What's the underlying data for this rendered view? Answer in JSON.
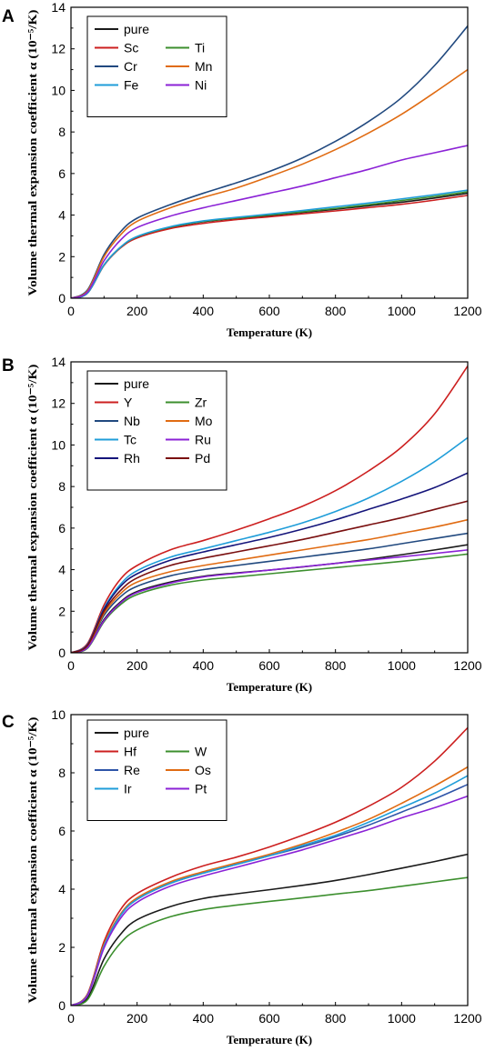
{
  "chart_data": [
    {
      "type": "line",
      "panel": "A",
      "xlabel": "Temperature (K)",
      "ylabel": "Volume thermal expansion coefficient α (10⁻⁵/K)",
      "xlim": [
        0,
        1200
      ],
      "ylim": [
        0,
        14
      ],
      "xticks": [
        0,
        200,
        400,
        600,
        800,
        1000,
        1200
      ],
      "yticks": [
        0,
        2,
        4,
        6,
        8,
        10,
        12,
        14
      ],
      "grid": false,
      "legend_position": "top-left",
      "x": [
        0,
        50,
        100,
        150,
        200,
        300,
        400,
        500,
        600,
        700,
        800,
        900,
        1000,
        1100,
        1200
      ],
      "series": [
        {
          "name": "pure",
          "color": "#1a1a1a",
          "values": [
            0,
            0.25,
            1.6,
            2.45,
            2.95,
            3.4,
            3.68,
            3.84,
            3.98,
            4.13,
            4.28,
            4.45,
            4.62,
            4.82,
            5.05
          ]
        },
        {
          "name": "Sc",
          "color": "#cc1f1f",
          "values": [
            0,
            0.25,
            1.58,
            2.42,
            2.9,
            3.35,
            3.6,
            3.78,
            3.92,
            4.06,
            4.2,
            4.36,
            4.52,
            4.72,
            4.95
          ]
        },
        {
          "name": "Ti",
          "color": "#3c8f2e",
          "values": [
            0,
            0.25,
            1.6,
            2.45,
            2.96,
            3.42,
            3.7,
            3.86,
            4.01,
            4.16,
            4.32,
            4.5,
            4.7,
            4.9,
            5.12
          ]
        },
        {
          "name": "Cr",
          "color": "#21497f",
          "values": [
            0,
            0.4,
            2.1,
            3.2,
            3.85,
            4.5,
            5.05,
            5.55,
            6.1,
            6.75,
            7.55,
            8.5,
            9.65,
            11.2,
            13.1
          ]
        },
        {
          "name": "Mn",
          "color": "#e06b12",
          "values": [
            0,
            0.35,
            2.0,
            3.05,
            3.7,
            4.35,
            4.85,
            5.3,
            5.85,
            6.45,
            7.15,
            7.95,
            8.85,
            9.9,
            11.0
          ]
        },
        {
          "name": "Fe",
          "color": "#1f9dd9",
          "values": [
            0,
            0.25,
            1.6,
            2.46,
            2.97,
            3.44,
            3.72,
            3.89,
            4.05,
            4.22,
            4.4,
            4.58,
            4.78,
            4.98,
            5.2
          ]
        },
        {
          "name": "Ni",
          "color": "#8b22d6",
          "values": [
            0,
            0.3,
            1.8,
            2.8,
            3.4,
            3.95,
            4.35,
            4.7,
            5.05,
            5.4,
            5.8,
            6.2,
            6.65,
            7.0,
            7.35
          ]
        }
      ]
    },
    {
      "type": "line",
      "panel": "B",
      "xlabel": "Temperature (K)",
      "ylabel": "Volume thermal expansion coefficient α (10⁻⁵/K)",
      "xlim": [
        0,
        1200
      ],
      "ylim": [
        0,
        14
      ],
      "xticks": [
        0,
        200,
        400,
        600,
        800,
        1000,
        1200
      ],
      "yticks": [
        0,
        2,
        4,
        6,
        8,
        10,
        12,
        14
      ],
      "grid": false,
      "legend_position": "top-left",
      "x": [
        0,
        50,
        100,
        150,
        200,
        300,
        400,
        500,
        600,
        700,
        800,
        900,
        1000,
        1100,
        1200
      ],
      "series": [
        {
          "name": "pure",
          "color": "#1a1a1a",
          "values": [
            0,
            0.25,
            1.6,
            2.45,
            2.95,
            3.4,
            3.68,
            3.84,
            3.98,
            4.13,
            4.3,
            4.5,
            4.72,
            4.95,
            5.2
          ]
        },
        {
          "name": "Y",
          "color": "#cc1f1f",
          "values": [
            0,
            0.45,
            2.3,
            3.55,
            4.2,
            4.95,
            5.4,
            5.9,
            6.45,
            7.05,
            7.8,
            8.75,
            9.9,
            11.5,
            13.8
          ]
        },
        {
          "name": "Zr",
          "color": "#3c8f2e",
          "values": [
            0,
            0.22,
            1.5,
            2.32,
            2.8,
            3.25,
            3.5,
            3.65,
            3.8,
            3.95,
            4.1,
            4.25,
            4.4,
            4.57,
            4.75
          ]
        },
        {
          "name": "Nb",
          "color": "#21497f",
          "values": [
            0,
            0.3,
            1.8,
            2.7,
            3.2,
            3.7,
            4.0,
            4.2,
            4.4,
            4.6,
            4.8,
            5.0,
            5.25,
            5.5,
            5.75
          ]
        },
        {
          "name": "Mo",
          "color": "#e06b12",
          "values": [
            0,
            0.32,
            1.9,
            2.85,
            3.4,
            3.9,
            4.2,
            4.45,
            4.7,
            4.95,
            5.2,
            5.45,
            5.75,
            6.05,
            6.4
          ]
        },
        {
          "name": "Tc",
          "color": "#1f9dd9",
          "values": [
            0,
            0.4,
            2.15,
            3.3,
            3.95,
            4.6,
            5.0,
            5.4,
            5.8,
            6.25,
            6.8,
            7.45,
            8.25,
            9.2,
            10.35
          ]
        },
        {
          "name": "Ru",
          "color": "#8b22d6",
          "values": [
            0,
            0.25,
            1.55,
            2.4,
            2.9,
            3.35,
            3.65,
            3.82,
            3.98,
            4.14,
            4.3,
            4.46,
            4.62,
            4.78,
            4.95
          ]
        },
        {
          "name": "Rh",
          "color": "#14147a",
          "values": [
            0,
            0.38,
            2.1,
            3.2,
            3.8,
            4.45,
            4.85,
            5.2,
            5.55,
            5.95,
            6.4,
            6.9,
            7.4,
            7.95,
            8.65
          ]
        },
        {
          "name": "Pd",
          "color": "#7a1010",
          "values": [
            0,
            0.35,
            2.0,
            3.0,
            3.6,
            4.2,
            4.55,
            4.85,
            5.15,
            5.45,
            5.8,
            6.15,
            6.5,
            6.9,
            7.3
          ]
        }
      ]
    },
    {
      "type": "line",
      "panel": "C",
      "xlabel": "Temperature (K)",
      "ylabel": "Volume thermal expansion coefficient α (10⁻⁵/K)",
      "xlim": [
        0,
        1200
      ],
      "ylim": [
        0,
        10
      ],
      "xticks": [
        0,
        200,
        400,
        600,
        800,
        1000,
        1200
      ],
      "yticks": [
        0,
        2,
        4,
        6,
        8,
        10
      ],
      "grid": false,
      "legend_position": "top-left",
      "x": [
        0,
        50,
        100,
        150,
        200,
        300,
        400,
        500,
        600,
        700,
        800,
        900,
        1000,
        1100,
        1200
      ],
      "series": [
        {
          "name": "pure",
          "color": "#1a1a1a",
          "values": [
            0,
            0.25,
            1.6,
            2.45,
            2.95,
            3.4,
            3.68,
            3.84,
            3.98,
            4.13,
            4.3,
            4.5,
            4.72,
            4.95,
            5.2
          ]
        },
        {
          "name": "Hf",
          "color": "#cc1f1f",
          "values": [
            0,
            0.4,
            2.2,
            3.3,
            3.85,
            4.4,
            4.8,
            5.1,
            5.45,
            5.85,
            6.3,
            6.85,
            7.5,
            8.4,
            9.55
          ]
        },
        {
          "name": "W",
          "color": "#3c8f2e",
          "values": [
            0,
            0.2,
            1.35,
            2.15,
            2.6,
            3.05,
            3.3,
            3.45,
            3.58,
            3.7,
            3.83,
            3.95,
            4.1,
            4.25,
            4.4
          ]
        },
        {
          "name": "Re",
          "color": "#2e54a8",
          "values": [
            0,
            0.36,
            2.05,
            3.1,
            3.65,
            4.2,
            4.55,
            4.85,
            5.15,
            5.45,
            5.8,
            6.2,
            6.65,
            7.1,
            7.6
          ]
        },
        {
          "name": "Os",
          "color": "#e06b12",
          "values": [
            0,
            0.37,
            2.1,
            3.15,
            3.7,
            4.25,
            4.6,
            4.9,
            5.2,
            5.55,
            5.95,
            6.4,
            6.95,
            7.55,
            8.2
          ]
        },
        {
          "name": "Ir",
          "color": "#1f9dd9",
          "values": [
            0,
            0.36,
            2.05,
            3.1,
            3.65,
            4.2,
            4.55,
            4.85,
            5.15,
            5.5,
            5.85,
            6.3,
            6.8,
            7.3,
            7.9
          ]
        },
        {
          "name": "Pt",
          "color": "#8b22d6",
          "values": [
            0,
            0.34,
            1.98,
            3.0,
            3.55,
            4.1,
            4.45,
            4.75,
            5.05,
            5.35,
            5.7,
            6.05,
            6.45,
            6.8,
            7.2
          ]
        }
      ]
    }
  ]
}
